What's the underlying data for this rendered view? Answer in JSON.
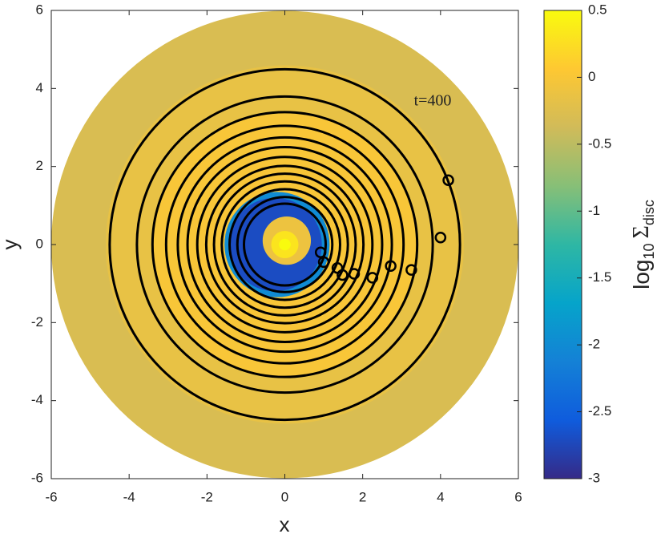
{
  "chart_data": {
    "type": "disc",
    "xlabel": "x",
    "ylabel": "y",
    "xlim": [
      -6,
      6
    ],
    "xticks": [
      -6,
      -4,
      -2,
      0,
      2,
      4,
      6
    ],
    "ylim": [
      -6,
      6
    ],
    "yticks": [
      -6,
      -4,
      -2,
      0,
      2,
      4,
      6
    ],
    "annotation": "t=400",
    "colorbar": {
      "label": {
        "base": "log",
        "sub": "10",
        "symbol": "Σ",
        "symbol_sub": "disc"
      },
      "clim": [
        -3,
        0.5
      ],
      "ticks": [
        0.5,
        0,
        -0.5,
        -1,
        -1.5,
        -2,
        -2.5,
        -3
      ],
      "colormap": [
        "#352a87",
        "#0f5cdd",
        "#1481d6",
        "#06a4ca",
        "#2eb7a4",
        "#87bf77",
        "#d1bb59",
        "#fec832",
        "#f9fb0e"
      ]
    },
    "regions": [
      {
        "x": 0,
        "y": 0,
        "r": 6,
        "value": -0.3
      },
      {
        "x": 0,
        "y": 0,
        "r": 4.6,
        "value": -0.15
      },
      {
        "x": 0,
        "y": 0,
        "r": 3.4,
        "value": 0
      },
      {
        "x": -0.2,
        "y": 0,
        "r": 1.35,
        "value": -2
      },
      {
        "x": -0.25,
        "y": 0,
        "r": 1.2,
        "value": -2.7
      },
      {
        "x": 0.05,
        "y": 0.1,
        "r": 0.62,
        "value": -0.1
      },
      {
        "x": 0,
        "y": 0,
        "r": 0.35,
        "value": 0.3
      },
      {
        "x": 0,
        "y": 0,
        "r": 0.15,
        "value": 0.5
      }
    ],
    "line_color": "#000000",
    "rings": [
      4.5,
      3.8,
      3.4,
      3.05,
      2.75,
      2.5,
      2.25,
      2.02,
      1.82,
      1.62,
      1.42,
      1.22,
      1.05
    ],
    "markers": {
      "x": [
        4.2,
        4.0,
        3.25,
        2.72,
        2.25,
        1.78,
        1.48,
        1.35,
        1.0,
        0.92
      ],
      "y": [
        1.65,
        0.18,
        -0.65,
        -0.55,
        -0.85,
        -0.75,
        -0.78,
        -0.6,
        -0.45,
        -0.2
      ]
    }
  }
}
